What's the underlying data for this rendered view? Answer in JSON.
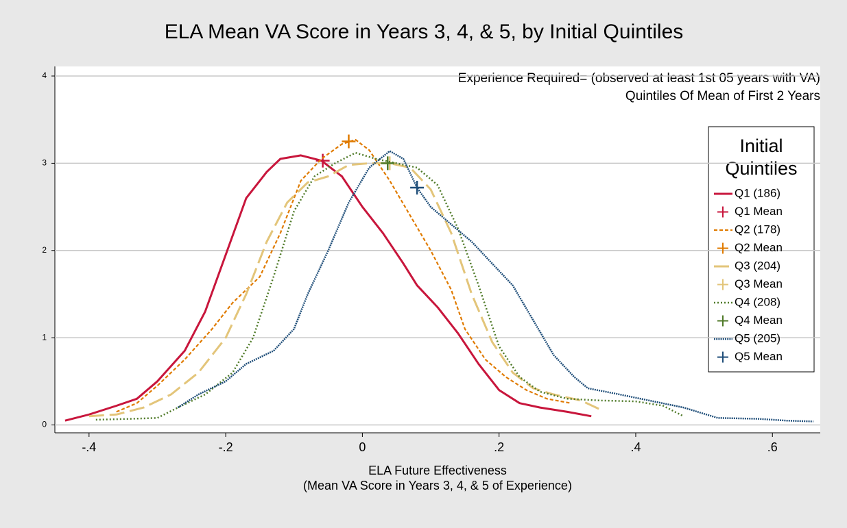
{
  "chart_data": {
    "type": "line",
    "title": "ELA Mean VA Score in Years 3, 4, & 5, by Initial Quintiles",
    "annotations": [
      "Experience Required= (observed at least 1st 05 years with VA)",
      "Quintiles Of Mean of First 2 Years"
    ],
    "x_label": [
      "ELA Future Effectiveness",
      "(Mean VA Score in Years 3, 4, & 5 of Experience)"
    ],
    "legend_title": [
      "Initial",
      "Quintiles"
    ],
    "legend_position": "right",
    "grid": true,
    "xlim": [
      -0.45,
      0.67
    ],
    "ylim": [
      -0.09,
      4.11
    ],
    "xticks": [
      {
        "value": -0.4,
        "label": "-.4"
      },
      {
        "value": -0.2,
        "label": "-.2"
      },
      {
        "value": 0,
        "label": "0"
      },
      {
        "value": 0.2,
        "label": ".2"
      },
      {
        "value": 0.4,
        "label": ".4"
      },
      {
        "value": 0.6,
        "label": ".6"
      }
    ],
    "yticks": [
      0,
      1,
      2,
      3,
      4
    ],
    "series": [
      {
        "name": "Q1 (186)",
        "color": "#c8163c",
        "style": "solid",
        "x": [
          -0.435,
          -0.4,
          -0.36,
          -0.33,
          -0.3,
          -0.26,
          -0.23,
          -0.2,
          -0.17,
          -0.14,
          -0.12,
          -0.09,
          -0.06,
          -0.03,
          0,
          0.03,
          0.06,
          0.08,
          0.11,
          0.14,
          0.17,
          0.2,
          0.23,
          0.26,
          0.3,
          0.335
        ],
        "values": [
          0.05,
          0.12,
          0.22,
          0.3,
          0.5,
          0.85,
          1.3,
          1.95,
          2.6,
          2.9,
          3.05,
          3.09,
          3.03,
          2.85,
          2.5,
          2.2,
          1.85,
          1.6,
          1.35,
          1.05,
          0.7,
          0.4,
          0.25,
          0.2,
          0.15,
          0.1
        ]
      },
      {
        "name": "Q1 Mean",
        "color": "#c8163c",
        "style": "plus",
        "x": [
          -0.058
        ],
        "values": [
          3.03
        ]
      },
      {
        "name": "Q2 (178)",
        "color": "#e07b00",
        "style": "dash",
        "x": [
          -0.36,
          -0.33,
          -0.3,
          -0.26,
          -0.22,
          -0.19,
          -0.15,
          -0.12,
          -0.09,
          -0.06,
          -0.03,
          -0.01,
          0.01,
          0.04,
          0.07,
          0.1,
          0.13,
          0.15,
          0.18,
          0.21,
          0.24,
          0.27,
          0.305
        ],
        "values": [
          0.15,
          0.25,
          0.45,
          0.75,
          1.1,
          1.4,
          1.7,
          2.2,
          2.8,
          3.05,
          3.22,
          3.27,
          3.15,
          2.8,
          2.4,
          2.0,
          1.55,
          1.1,
          0.75,
          0.55,
          0.4,
          0.3,
          0.25
        ]
      },
      {
        "name": "Q2 Mean",
        "color": "#e07b00",
        "style": "plus",
        "x": [
          -0.02
        ],
        "values": [
          3.25
        ]
      },
      {
        "name": "Q3 (204)",
        "color": "#e3c57a",
        "style": "longdash",
        "x": [
          -0.4,
          -0.36,
          -0.32,
          -0.28,
          -0.24,
          -0.2,
          -0.17,
          -0.14,
          -0.11,
          -0.08,
          -0.05,
          -0.02,
          0.01,
          0.04,
          0.07,
          0.1,
          0.13,
          0.16,
          0.19,
          0.22,
          0.25,
          0.28,
          0.32,
          0.35
        ],
        "values": [
          0.1,
          0.12,
          0.2,
          0.35,
          0.6,
          1.0,
          1.5,
          2.1,
          2.55,
          2.78,
          2.85,
          2.98,
          3.0,
          3.0,
          2.95,
          2.7,
          2.2,
          1.5,
          0.95,
          0.6,
          0.42,
          0.35,
          0.28,
          0.17
        ]
      },
      {
        "name": "Q3 Mean",
        "color": "#e3c57a",
        "style": "plus",
        "x": [
          0.04
        ],
        "values": [
          3.0
        ]
      },
      {
        "name": "Q4 (208)",
        "color": "#4f7a28",
        "style": "dot",
        "x": [
          -0.39,
          -0.34,
          -0.3,
          -0.27,
          -0.23,
          -0.19,
          -0.16,
          -0.13,
          -0.1,
          -0.07,
          -0.04,
          -0.01,
          0.02,
          0.05,
          0.08,
          0.11,
          0.14,
          0.17,
          0.2,
          0.23,
          0.26,
          0.3,
          0.35,
          0.4,
          0.44,
          0.47
        ],
        "values": [
          0.06,
          0.07,
          0.08,
          0.2,
          0.35,
          0.6,
          1.0,
          1.7,
          2.45,
          2.85,
          3.0,
          3.12,
          3.05,
          3.0,
          2.95,
          2.75,
          2.25,
          1.6,
          0.9,
          0.55,
          0.38,
          0.3,
          0.28,
          0.27,
          0.22,
          0.1
        ]
      },
      {
        "name": "Q4 Mean",
        "color": "#4f7a28",
        "style": "plus",
        "x": [
          0.037
        ],
        "values": [
          3.0
        ]
      },
      {
        "name": "Q5 (205)",
        "color": "#1f4e79",
        "style": "densedot",
        "x": [
          -0.27,
          -0.24,
          -0.2,
          -0.17,
          -0.13,
          -0.1,
          -0.08,
          -0.05,
          -0.02,
          0.01,
          0.04,
          0.06,
          0.08,
          0.1,
          0.13,
          0.16,
          0.19,
          0.22,
          0.25,
          0.28,
          0.31,
          0.33,
          0.37,
          0.42,
          0.47,
          0.52,
          0.58,
          0.62,
          0.66
        ],
        "values": [
          0.2,
          0.35,
          0.5,
          0.7,
          0.85,
          1.1,
          1.5,
          2.0,
          2.55,
          2.95,
          3.14,
          3.05,
          2.72,
          2.5,
          2.3,
          2.1,
          1.85,
          1.6,
          1.2,
          0.8,
          0.55,
          0.42,
          0.36,
          0.28,
          0.2,
          0.08,
          0.07,
          0.05,
          0.04
        ]
      },
      {
        "name": "Q5 Mean",
        "color": "#1f4e79",
        "style": "plus",
        "x": [
          0.08
        ],
        "values": [
          2.72
        ]
      }
    ]
  }
}
